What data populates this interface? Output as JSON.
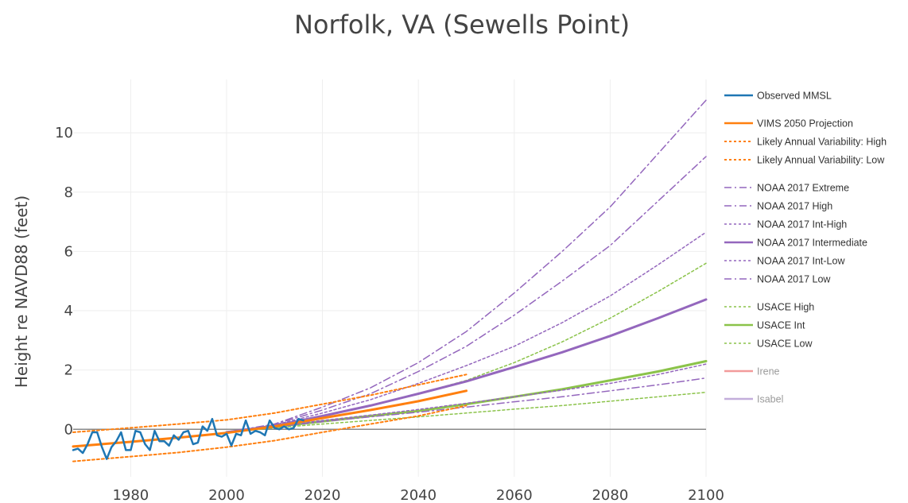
{
  "chart_data": {
    "type": "line",
    "title": "Norfolk, VA (Sewells Point)",
    "xlabel": "",
    "ylabel": "Height re NAVD88 (feet)",
    "xlim": [
      1968,
      2100
    ],
    "ylim": [
      -1.6,
      11.8
    ],
    "x_ticks": [
      1980,
      2000,
      2020,
      2040,
      2060,
      2080,
      2100
    ],
    "y_ticks": [
      0,
      2,
      4,
      6,
      8,
      10
    ],
    "grid": true,
    "legend_position": "right",
    "series": [
      {
        "name": "Observed MMSL",
        "color": "#1f77b4",
        "dash": "solid",
        "width": 2.5,
        "x": [
          1968,
          1969,
          1970,
          1971,
          1972,
          1973,
          1974,
          1975,
          1976,
          1977,
          1978,
          1979,
          1980,
          1981,
          1982,
          1983,
          1984,
          1985,
          1986,
          1987,
          1988,
          1989,
          1990,
          1991,
          1992,
          1993,
          1994,
          1995,
          1996,
          1997,
          1998,
          1999,
          2000,
          2001,
          2002,
          2003,
          2004,
          2005,
          2006,
          2007,
          2008,
          2009,
          2010,
          2011,
          2012,
          2013,
          2014,
          2015,
          2016
        ],
        "y": [
          -0.7,
          -0.65,
          -0.8,
          -0.5,
          -0.1,
          -0.1,
          -0.6,
          -1.0,
          -0.6,
          -0.4,
          -0.1,
          -0.7,
          -0.7,
          -0.05,
          -0.1,
          -0.5,
          -0.7,
          -0.05,
          -0.4,
          -0.4,
          -0.55,
          -0.2,
          -0.35,
          -0.1,
          -0.05,
          -0.5,
          -0.45,
          0.1,
          -0.05,
          0.35,
          -0.2,
          -0.25,
          -0.15,
          -0.55,
          -0.15,
          -0.2,
          0.3,
          -0.15,
          -0.05,
          -0.1,
          -0.2,
          0.3,
          0.05,
          0.0,
          0.1,
          0.0,
          0.05,
          0.35,
          0.3
        ]
      },
      {
        "name": "VIMS 2050 Projection",
        "color": "#ff7f0e",
        "dash": "solid",
        "width": 3,
        "x": [
          1968,
          1980,
          1990,
          2000,
          2010,
          2020,
          2030,
          2040,
          2050
        ],
        "y": [
          -0.58,
          -0.42,
          -0.28,
          -0.12,
          0.1,
          0.38,
          0.65,
          0.95,
          1.3
        ]
      },
      {
        "name": "Likely Annual Variability: High",
        "color": "#ff7f0e",
        "dash": "dot",
        "width": 2,
        "x": [
          1968,
          1980,
          1990,
          2000,
          2010,
          2020,
          2030,
          2040,
          2050
        ],
        "y": [
          -0.1,
          0.05,
          0.18,
          0.32,
          0.55,
          0.85,
          1.15,
          1.5,
          1.85
        ]
      },
      {
        "name": "Likely Annual Variability: Low",
        "color": "#ff7f0e",
        "dash": "dot",
        "width": 2,
        "x": [
          1968,
          1980,
          1990,
          2000,
          2010,
          2020,
          2030,
          2040,
          2050
        ],
        "y": [
          -1.08,
          -0.92,
          -0.78,
          -0.6,
          -0.38,
          -0.1,
          0.18,
          0.45,
          0.8
        ]
      },
      {
        "name": "NOAA 2017 Extreme",
        "color": "#9467bd",
        "dash": "dashdot",
        "width": 1.5,
        "x": [
          2000,
          2010,
          2020,
          2030,
          2040,
          2050,
          2060,
          2070,
          2080,
          2090,
          2100
        ],
        "y": [
          -0.1,
          0.18,
          0.75,
          1.4,
          2.25,
          3.3,
          4.6,
          6.0,
          7.5,
          9.3,
          11.1
        ]
      },
      {
        "name": "NOAA 2017 High",
        "color": "#9467bd",
        "dash": "dashdot",
        "width": 1.5,
        "x": [
          2000,
          2010,
          2020,
          2030,
          2040,
          2050,
          2060,
          2070,
          2080,
          2090,
          2100
        ],
        "y": [
          -0.1,
          0.17,
          0.65,
          1.2,
          1.95,
          2.8,
          3.85,
          5.0,
          6.2,
          7.7,
          9.2
        ]
      },
      {
        "name": "NOAA 2017 Int-High",
        "color": "#9467bd",
        "dash": "dot",
        "width": 1.5,
        "x": [
          2000,
          2010,
          2020,
          2030,
          2040,
          2050,
          2060,
          2070,
          2080,
          2090,
          2100
        ],
        "y": [
          -0.1,
          0.15,
          0.55,
          1.0,
          1.55,
          2.15,
          2.8,
          3.6,
          4.5,
          5.55,
          6.65
        ]
      },
      {
        "name": "NOAA 2017 Intermediate",
        "color": "#9467bd",
        "dash": "solid",
        "width": 3,
        "x": [
          2000,
          2010,
          2020,
          2030,
          2040,
          2050,
          2060,
          2070,
          2080,
          2090,
          2100
        ],
        "y": [
          -0.1,
          0.12,
          0.45,
          0.8,
          1.2,
          1.62,
          2.1,
          2.6,
          3.15,
          3.75,
          4.38
        ]
      },
      {
        "name": "NOAA 2017 Int-Low",
        "color": "#9467bd",
        "dash": "dot",
        "width": 1.5,
        "x": [
          2000,
          2010,
          2020,
          2030,
          2040,
          2050,
          2060,
          2070,
          2080,
          2090,
          2100
        ],
        "y": [
          -0.1,
          0.1,
          0.3,
          0.48,
          0.67,
          0.88,
          1.1,
          1.32,
          1.55,
          1.85,
          2.2
        ]
      },
      {
        "name": "NOAA 2017 Low",
        "color": "#9467bd",
        "dash": "dashdot",
        "width": 1.5,
        "x": [
          2000,
          2010,
          2020,
          2030,
          2040,
          2050,
          2060,
          2070,
          2080,
          2090,
          2100
        ],
        "y": [
          -0.1,
          0.08,
          0.26,
          0.42,
          0.58,
          0.75,
          0.93,
          1.1,
          1.3,
          1.5,
          1.73
        ]
      },
      {
        "name": "USACE High",
        "color": "#8bc34a",
        "dash": "dot",
        "width": 1.5,
        "x": [
          2000,
          2010,
          2020,
          2030,
          2040,
          2050,
          2060,
          2070,
          2080,
          2090,
          2100
        ],
        "y": [
          -0.1,
          0.15,
          0.45,
          0.8,
          1.2,
          1.65,
          2.25,
          2.95,
          3.75,
          4.65,
          5.6
        ]
      },
      {
        "name": "USACE Int",
        "color": "#8bc34a",
        "dash": "solid",
        "width": 3,
        "x": [
          2000,
          2010,
          2020,
          2030,
          2040,
          2050,
          2060,
          2070,
          2080,
          2090,
          2100
        ],
        "y": [
          -0.1,
          0.08,
          0.27,
          0.45,
          0.62,
          0.85,
          1.1,
          1.35,
          1.65,
          1.95,
          2.3
        ]
      },
      {
        "name": "USACE Low",
        "color": "#8bc34a",
        "dash": "dot",
        "width": 1.5,
        "x": [
          2000,
          2010,
          2020,
          2030,
          2040,
          2050,
          2060,
          2070,
          2080,
          2090,
          2100
        ],
        "y": [
          -0.1,
          0.05,
          0.18,
          0.3,
          0.42,
          0.55,
          0.68,
          0.8,
          0.95,
          1.1,
          1.25
        ]
      },
      {
        "name": "Irene",
        "color": "#f29b9b",
        "dash": "solid",
        "width": 3,
        "muted": true,
        "x": [],
        "y": []
      },
      {
        "name": "Isabel",
        "color": "#c3aedb",
        "dash": "solid",
        "width": 3,
        "muted": true,
        "x": [],
        "y": []
      }
    ],
    "legend_groups": [
      [
        "Observed MMSL"
      ],
      [
        "VIMS 2050 Projection",
        "Likely Annual Variability: High",
        "Likely Annual Variability: Low"
      ],
      [
        "NOAA 2017 Extreme",
        "NOAA 2017 High",
        "NOAA 2017 Int-High",
        "NOAA 2017 Intermediate",
        "NOAA 2017 Int-Low",
        "NOAA 2017 Low"
      ],
      [
        "USACE High",
        "USACE Int",
        "USACE Low"
      ],
      [
        "Irene"
      ],
      [
        "Isabel"
      ]
    ],
    "zero_line_color": "#888888"
  }
}
